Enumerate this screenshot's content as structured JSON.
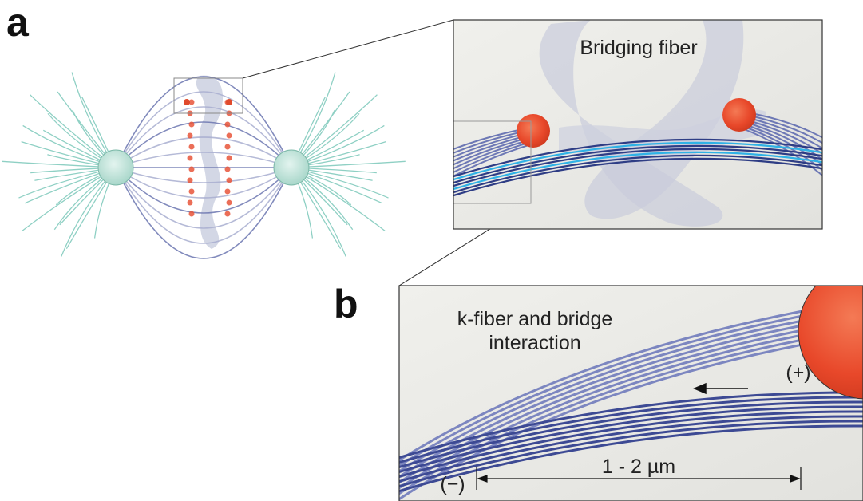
{
  "panel_a": {
    "label": "a",
    "zoom_title": "Bridging fiber"
  },
  "panel_b": {
    "label": "b",
    "title_lines": [
      "k-fiber and bridge",
      "interaction"
    ],
    "plus_end": "(+)",
    "minus_end": "(−)",
    "distance": "1 - 2 µm"
  }
}
